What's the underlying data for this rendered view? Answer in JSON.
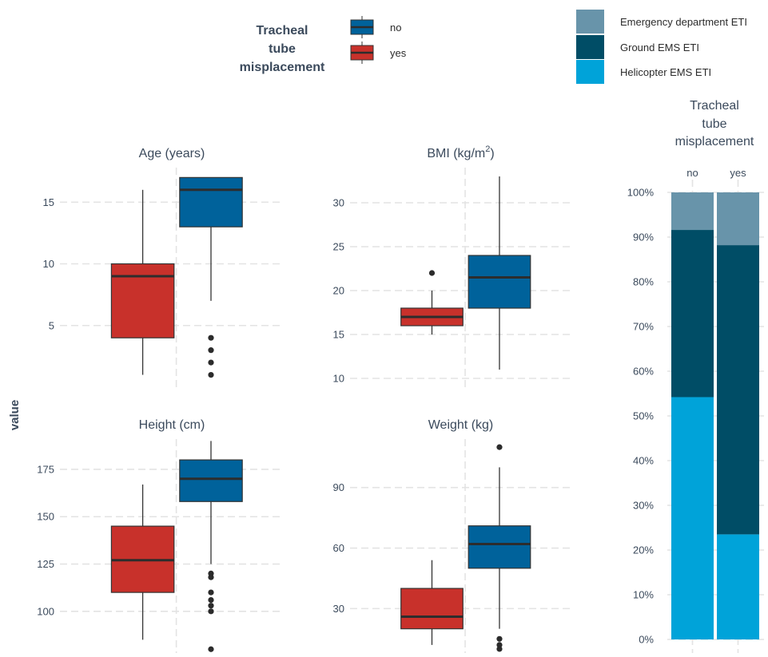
{
  "colors": {
    "no": "#00629b",
    "yes": "#c8312b",
    "ed": "#6894aa",
    "ground": "#004d66",
    "heli": "#00a3d9",
    "median": "#2d2d2d",
    "whisker": "#333333"
  },
  "legend": {
    "title": [
      "Tracheal",
      "tube",
      "misplacement"
    ],
    "items": [
      {
        "key": "no",
        "label": "no"
      },
      {
        "key": "yes",
        "label": "yes"
      }
    ]
  },
  "legend2": {
    "items": [
      {
        "key": "ed",
        "label": "Emergency department ETI"
      },
      {
        "key": "ground",
        "label": "Ground EMS ETI"
      },
      {
        "key": "heli",
        "label": "Helicopter EMS ETI"
      }
    ]
  },
  "y_axis_label": "value",
  "chart_data": [
    {
      "type": "box",
      "title": "Age (years)",
      "ylim": [
        0,
        17.8
      ],
      "ticks": [
        5,
        10,
        15
      ],
      "series": [
        {
          "name": "yes",
          "box": {
            "whisker_low": 1,
            "q1": 4,
            "median": 9,
            "q3": 10,
            "whisker_high": 16
          },
          "outliers": []
        },
        {
          "name": "no",
          "box": {
            "whisker_low": 7,
            "q1": 13,
            "median": 16,
            "q3": 17,
            "whisker_high": 17
          },
          "outliers": [
            1,
            2,
            3,
            4
          ]
        }
      ]
    },
    {
      "type": "box",
      "title": "BMI (kg/m2)",
      "ylim": [
        9,
        34
      ],
      "ticks": [
        10,
        15,
        20,
        25,
        30
      ],
      "series": [
        {
          "name": "yes",
          "box": {
            "whisker_low": 15,
            "q1": 16,
            "median": 17,
            "q3": 18,
            "whisker_high": 20
          },
          "outliers": [
            22
          ]
        },
        {
          "name": "no",
          "box": {
            "whisker_low": 11,
            "q1": 18,
            "median": 21.5,
            "q3": 24,
            "whisker_high": 33
          },
          "outliers": []
        }
      ]
    },
    {
      "type": "box",
      "title": "Height (cm)",
      "ylim": [
        78,
        191
      ],
      "ticks": [
        100,
        125,
        150,
        175
      ],
      "series": [
        {
          "name": "yes",
          "box": {
            "whisker_low": 85,
            "q1": 110,
            "median": 127,
            "q3": 145,
            "whisker_high": 167
          },
          "outliers": []
        },
        {
          "name": "no",
          "box": {
            "whisker_low": 125,
            "q1": 158,
            "median": 170,
            "q3": 180,
            "whisker_high": 190
          },
          "outliers": [
            80,
            100,
            103,
            106,
            110,
            118,
            120
          ]
        }
      ]
    },
    {
      "type": "box",
      "title": "Weight (kg)",
      "ylim": [
        8,
        114
      ],
      "ticks": [
        30,
        60,
        90
      ],
      "series": [
        {
          "name": "yes",
          "box": {
            "whisker_low": 12,
            "q1": 20,
            "median": 26,
            "q3": 40,
            "whisker_high": 54
          },
          "outliers": []
        },
        {
          "name": "no",
          "box": {
            "whisker_low": 20,
            "q1": 50,
            "median": 62,
            "q3": 71,
            "whisker_high": 100
          },
          "outliers": [
            10,
            12,
            15,
            110
          ]
        }
      ]
    },
    {
      "type": "stacked-bar",
      "title": [
        "Tracheal",
        "tube",
        "misplacement"
      ],
      "categories": [
        "no",
        "yes"
      ],
      "ylim": [
        0,
        100
      ],
      "ticks": [
        "0%",
        "10%",
        "20%",
        "30%",
        "40%",
        "50%",
        "60%",
        "70%",
        "80%",
        "90%",
        "100%"
      ],
      "series": [
        {
          "name": "Helicopter EMS ETI",
          "key": "heli",
          "values": [
            54.2,
            23.5
          ]
        },
        {
          "name": "Ground EMS ETI",
          "key": "ground",
          "values": [
            37.4,
            64.7
          ]
        },
        {
          "name": "Emergency department ETI",
          "key": "ed",
          "values": [
            8.4,
            11.8
          ]
        }
      ]
    }
  ]
}
